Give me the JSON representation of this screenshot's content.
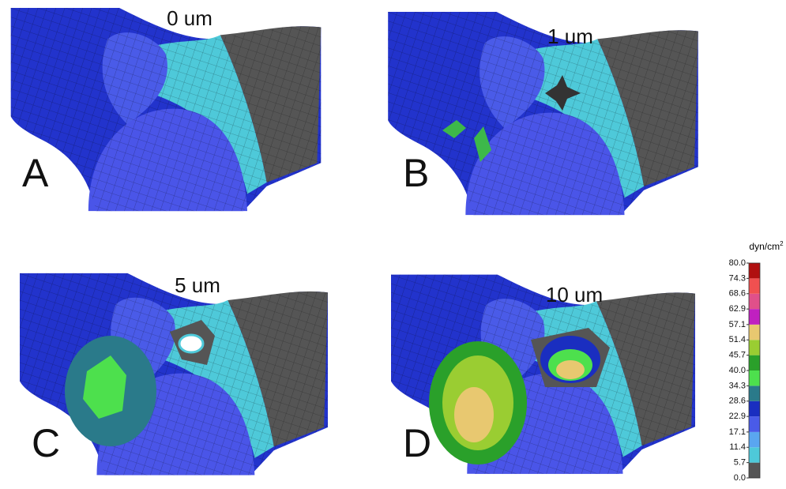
{
  "panels": [
    {
      "letter": "A",
      "title": "0 um"
    },
    {
      "letter": "B",
      "title": "1 um"
    },
    {
      "letter": "C",
      "title": "5 um"
    },
    {
      "letter": "D",
      "title": "10 um"
    }
  ],
  "colorbar": {
    "unit": "dyn/cm",
    "unit_superscript": "2",
    "ticks": [
      {
        "value": 0,
        "label": "0.0"
      },
      5.7,
      11.4,
      17.1,
      22.9,
      28.6,
      34.3,
      {
        "value": 40,
        "label": "40.0"
      },
      45.7,
      51.4,
      57.1,
      62.9,
      68.6,
      74.3,
      {
        "value": 80,
        "label": "80.0"
      }
    ],
    "colors": [
      "#555555",
      "#4ec9d9",
      "#5aa6f0",
      "#4a5be8",
      "#1a2ec0",
      "#2a7a8a",
      "#4de04d",
      "#2aa02a",
      "#9acd32",
      "#e8c870",
      "#c020c0",
      "#e0508a",
      "#f05050",
      "#b01010"
    ]
  }
}
